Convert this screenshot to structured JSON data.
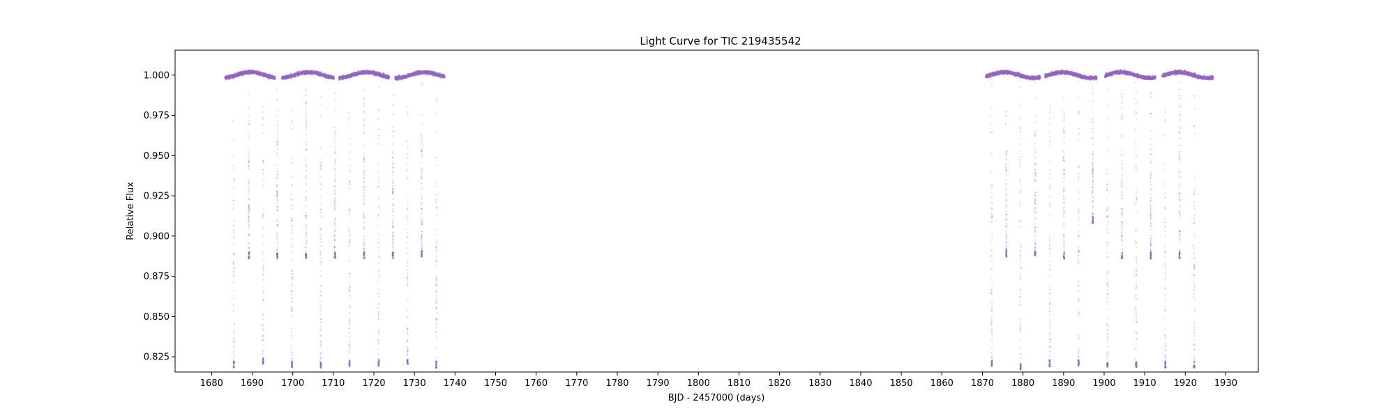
{
  "chart_data": {
    "type": "scatter",
    "title": "Light Curve for TIC 219435542",
    "xlabel": "BJD - 2457000 (days)",
    "ylabel": "Relative Flux",
    "xlim": [
      1671,
      1938
    ],
    "ylim": [
      0.8155,
      1.0155
    ],
    "xticks": [
      1680,
      1690,
      1700,
      1710,
      1720,
      1730,
      1740,
      1750,
      1760,
      1770,
      1780,
      1790,
      1800,
      1810,
      1820,
      1830,
      1840,
      1850,
      1860,
      1870,
      1880,
      1890,
      1900,
      1910,
      1920,
      1930
    ],
    "yticks": [
      "0.825",
      "0.850",
      "0.875",
      "0.900",
      "0.925",
      "0.950",
      "0.975",
      "1.000"
    ],
    "grid": false,
    "legend": "none",
    "marker_color": "#9467bd",
    "baseline_flux": 1.0,
    "segments": [
      {
        "start": 1683.3,
        "end": 1695.7
      },
      {
        "start": 1697.3,
        "end": 1710.2
      },
      {
        "start": 1711.4,
        "end": 1723.8
      },
      {
        "start": 1725.2,
        "end": 1737.5
      },
      {
        "start": 1870.8,
        "end": 1884.3
      },
      {
        "start": 1885.4,
        "end": 1898.2
      },
      {
        "start": 1900.2,
        "end": 1912.7
      },
      {
        "start": 1914.3,
        "end": 1926.9
      }
    ],
    "eclipses": [
      {
        "time": 1685.5,
        "depth_flux": 0.818
      },
      {
        "time": 1689.2,
        "depth_flux": 0.886
      },
      {
        "time": 1692.7,
        "depth_flux": 0.82
      },
      {
        "time": 1696.2,
        "depth_flux": 0.886
      },
      {
        "time": 1699.8,
        "depth_flux": 0.818
      },
      {
        "time": 1703.3,
        "depth_flux": 0.886
      },
      {
        "time": 1706.9,
        "depth_flux": 0.818
      },
      {
        "time": 1710.4,
        "depth_flux": 0.886
      },
      {
        "time": 1714.0,
        "depth_flux": 0.819
      },
      {
        "time": 1717.6,
        "depth_flux": 0.886
      },
      {
        "time": 1721.2,
        "depth_flux": 0.819
      },
      {
        "time": 1724.7,
        "depth_flux": 0.886
      },
      {
        "time": 1728.3,
        "depth_flux": 0.82
      },
      {
        "time": 1731.8,
        "depth_flux": 0.887
      },
      {
        "time": 1735.4,
        "depth_flux": 0.818
      },
      {
        "time": 1872.3,
        "depth_flux": 0.819
      },
      {
        "time": 1875.9,
        "depth_flux": 0.887
      },
      {
        "time": 1879.4,
        "depth_flux": 0.817
      },
      {
        "time": 1883.0,
        "depth_flux": 0.887
      },
      {
        "time": 1886.6,
        "depth_flux": 0.819
      },
      {
        "time": 1890.1,
        "depth_flux": 0.886
      },
      {
        "time": 1893.7,
        "depth_flux": 0.819
      },
      {
        "time": 1897.2,
        "depth_flux": 0.908
      },
      {
        "time": 1900.8,
        "depth_flux": 0.818
      },
      {
        "time": 1904.4,
        "depth_flux": 0.886
      },
      {
        "time": 1907.9,
        "depth_flux": 0.818
      },
      {
        "time": 1911.5,
        "depth_flux": 0.886
      },
      {
        "time": 1915.1,
        "depth_flux": 0.818
      },
      {
        "time": 1918.6,
        "depth_flux": 0.886
      },
      {
        "time": 1922.2,
        "depth_flux": 0.818
      }
    ]
  }
}
